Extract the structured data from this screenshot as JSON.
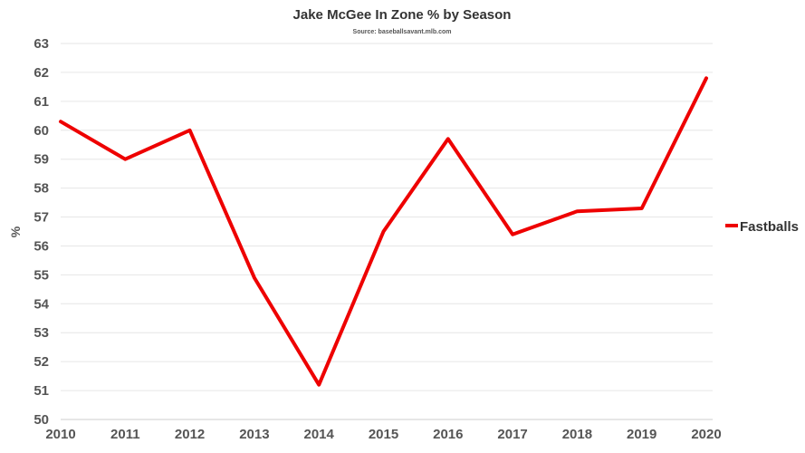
{
  "chart_data": {
    "type": "line",
    "title": "Jake McGee In Zone % by Season",
    "subtitle": "Source: baseballsavant.mlb.com",
    "xlabel": "",
    "ylabel": "%",
    "x": [
      "2010",
      "2011",
      "2012",
      "2013",
      "2014",
      "2015",
      "2016",
      "2017",
      "2018",
      "2019",
      "2020"
    ],
    "y_ticks": [
      "50",
      "51",
      "52",
      "53",
      "54",
      "55",
      "56",
      "57",
      "58",
      "59",
      "60",
      "61",
      "62",
      "63"
    ],
    "ylim": [
      50,
      63
    ],
    "grid": true,
    "legend_position": "right",
    "series": [
      {
        "name": "Fastballs",
        "color": "#ee0000",
        "values": [
          60.3,
          59.0,
          60.0,
          54.9,
          51.2,
          56.5,
          59.7,
          56.4,
          57.2,
          57.3,
          61.8
        ]
      }
    ]
  }
}
